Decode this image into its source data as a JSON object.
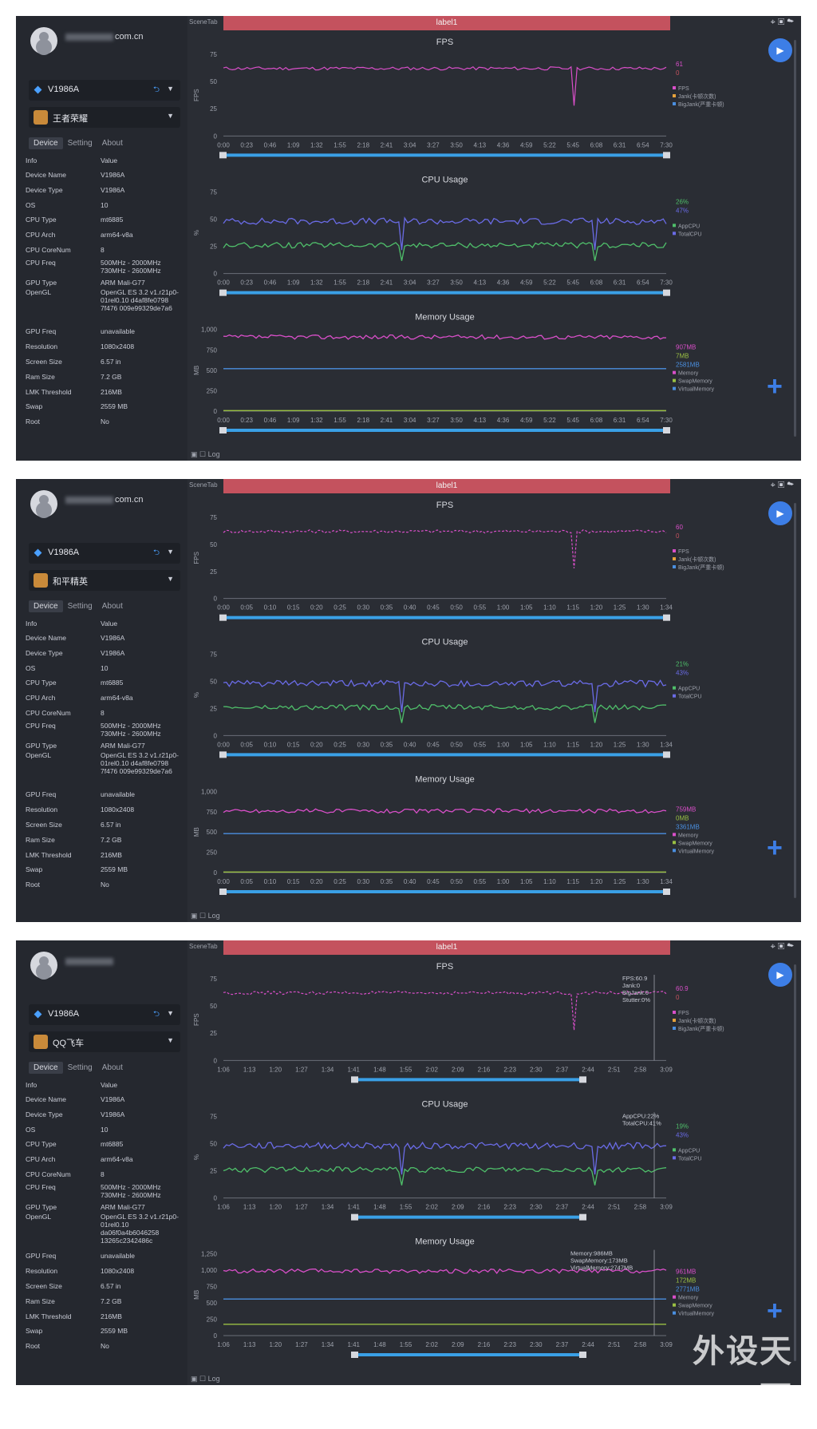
{
  "screenshots": [
    {
      "user": "com.cn",
      "device": "V1986A",
      "app": "王者荣耀",
      "tabs": [
        "Device",
        "Setting",
        "About"
      ],
      "info_header": {
        "k": "Info",
        "v": "Value"
      },
      "info": [
        {
          "k": "Device Name",
          "v": "V1986A"
        },
        {
          "k": "Device Type",
          "v": "V1986A"
        },
        {
          "k": "OS",
          "v": "10"
        },
        {
          "k": "CPU Type",
          "v": "mt6885"
        },
        {
          "k": "CPU Arch",
          "v": "arm64-v8a"
        },
        {
          "k": "CPU CoreNum",
          "v": "8"
        },
        {
          "k": "CPU Freq",
          "v": "500MHz - 2000MHz 730MHz - 2600MHz"
        },
        {
          "k": "GPU Type",
          "v": "ARM Mali-G77"
        },
        {
          "k": "OpenGL",
          "v": "OpenGL ES 3.2 v1.r21p0-01rel0.10 d4af8fe0798 7f476 009e99329de7a6"
        },
        {
          "k": "GPU Freq",
          "v": "unavailable"
        },
        {
          "k": "Resolution",
          "v": "1080x2408"
        },
        {
          "k": "Screen Size",
          "v": "6.57 in"
        },
        {
          "k": "Ram Size",
          "v": "7.2 GB"
        },
        {
          "k": "LMK Threshold",
          "v": "216MB"
        },
        {
          "k": "Swap",
          "v": "2559 MB"
        },
        {
          "k": "Root",
          "v": "No"
        }
      ],
      "scenetab": "SceneTab",
      "label": "label1",
      "bottom": "Log",
      "xticks": [
        "0:00",
        "0:23",
        "0:46",
        "1:09",
        "1:32",
        "1:55",
        "2:18",
        "2:41",
        "3:04",
        "3:27",
        "3:50",
        "4:13",
        "4:36",
        "4:59",
        "5:22",
        "5:45",
        "6:08",
        "6:31",
        "6:54",
        "7:30"
      ],
      "fps": {
        "title": "FPS",
        "ylabel": "FPS",
        "yticks": [
          "75",
          "50",
          "25",
          "0"
        ],
        "values": [
          "61",
          "0"
        ],
        "legend": [
          "FPS",
          "Jank(卡顿次数)",
          "BigJank(严重卡顿)"
        ]
      },
      "cpu": {
        "title": "CPU Usage",
        "ylabel": "%",
        "yticks": [
          "75",
          "50",
          "25",
          "0"
        ],
        "values": [
          "26%",
          "47%"
        ],
        "legend": [
          "AppCPU",
          "TotalCPU"
        ]
      },
      "mem": {
        "title": "Memory Usage",
        "ylabel": "MB",
        "yticks": [
          "1,000",
          "750",
          "500",
          "250",
          "0"
        ],
        "values": [
          "907MB",
          "7MB",
          "2581MB"
        ],
        "legend": [
          "Memory",
          "SwapMemory",
          "VirtualMemory"
        ]
      }
    },
    {
      "user": "com.cn",
      "device": "V1986A",
      "app": "和平精英",
      "tabs": [
        "Device",
        "Setting",
        "About"
      ],
      "info_header": {
        "k": "Info",
        "v": "Value"
      },
      "info": [
        {
          "k": "Device Name",
          "v": "V1986A"
        },
        {
          "k": "Device Type",
          "v": "V1986A"
        },
        {
          "k": "OS",
          "v": "10"
        },
        {
          "k": "CPU Type",
          "v": "mt6885"
        },
        {
          "k": "CPU Arch",
          "v": "arm64-v8a"
        },
        {
          "k": "CPU CoreNum",
          "v": "8"
        },
        {
          "k": "CPU Freq",
          "v": "500MHz - 2000MHz 730MHz - 2600MHz"
        },
        {
          "k": "GPU Type",
          "v": "ARM Mali-G77"
        },
        {
          "k": "OpenGL",
          "v": "OpenGL ES 3.2 v1.r21p0-01rel0.10 d4af8fe0798 7f476 009e99329de7a6"
        },
        {
          "k": "GPU Freq",
          "v": "unavailable"
        },
        {
          "k": "Resolution",
          "v": "1080x2408"
        },
        {
          "k": "Screen Size",
          "v": "6.57 in"
        },
        {
          "k": "Ram Size",
          "v": "7.2 GB"
        },
        {
          "k": "LMK Threshold",
          "v": "216MB"
        },
        {
          "k": "Swap",
          "v": "2559 MB"
        },
        {
          "k": "Root",
          "v": "No"
        }
      ],
      "scenetab": "SceneTab",
      "label": "label1",
      "bottom": "Log",
      "xticks": [
        "0:00",
        "0:05",
        "0:10",
        "0:15",
        "0:20",
        "0:25",
        "0:30",
        "0:35",
        "0:40",
        "0:45",
        "0:50",
        "0:55",
        "1:00",
        "1:05",
        "1:10",
        "1:15",
        "1:20",
        "1:25",
        "1:30",
        "1:34"
      ],
      "fps": {
        "title": "FPS",
        "ylabel": "FPS",
        "yticks": [
          "75",
          "50",
          "25",
          "0"
        ],
        "values": [
          "60",
          "0"
        ],
        "legend": [
          "FPS",
          "Jank(卡顿次数)",
          "BigJank(严重卡顿)"
        ]
      },
      "cpu": {
        "title": "CPU Usage",
        "ylabel": "%",
        "yticks": [
          "75",
          "50",
          "25",
          "0"
        ],
        "values": [
          "21%",
          "43%"
        ],
        "legend": [
          "AppCPU",
          "TotalCPU"
        ]
      },
      "mem": {
        "title": "Memory Usage",
        "ylabel": "MB",
        "yticks": [
          "1,000",
          "750",
          "500",
          "250",
          "0"
        ],
        "values": [
          "759MB",
          "0MB",
          "3361MB"
        ],
        "legend": [
          "Memory",
          "SwapMemory",
          "VirtualMemory"
        ]
      }
    },
    {
      "user": "",
      "device": "V1986A",
      "app": "QQ飞车",
      "tabs": [
        "Device",
        "Setting",
        "About"
      ],
      "info_header": {
        "k": "Info",
        "v": "Value"
      },
      "info": [
        {
          "k": "Device Name",
          "v": "V1986A"
        },
        {
          "k": "Device Type",
          "v": "V1986A"
        },
        {
          "k": "OS",
          "v": "10"
        },
        {
          "k": "CPU Type",
          "v": "mt6885"
        },
        {
          "k": "CPU Arch",
          "v": "arm64-v8a"
        },
        {
          "k": "CPU CoreNum",
          "v": "8"
        },
        {
          "k": "CPU Freq",
          "v": "500MHz - 2000MHz 730MHz - 2600MHz"
        },
        {
          "k": "GPU Type",
          "v": "ARM Mali-G77"
        },
        {
          "k": "OpenGL",
          "v": "OpenGL ES 3.2 v1.r21p0-01rel0.10 da06f0a4b6046258 13265c2342486c"
        },
        {
          "k": "GPU Freq",
          "v": "unavailable"
        },
        {
          "k": "Resolution",
          "v": "1080x2408"
        },
        {
          "k": "Screen Size",
          "v": "6.57 in"
        },
        {
          "k": "Ram Size",
          "v": "7.2 GB"
        },
        {
          "k": "LMK Threshold",
          "v": "216MB"
        },
        {
          "k": "Swap",
          "v": "2559 MB"
        },
        {
          "k": "Root",
          "v": "No"
        }
      ],
      "scenetab": "SceneTab",
      "label": "label1",
      "bottom": "Log",
      "xticks": [
        "1:06",
        "1:13",
        "1:20",
        "1:27",
        "1:34",
        "1:41",
        "1:48",
        "1:55",
        "2:02",
        "2:09",
        "2:16",
        "2:23",
        "2:30",
        "2:37",
        "2:44",
        "2:51",
        "2:58",
        "3:09"
      ],
      "fps": {
        "title": "FPS",
        "ylabel": "FPS",
        "yticks": [
          "75",
          "50",
          "25",
          "0"
        ],
        "values": [
          "60.9",
          "0"
        ],
        "legend": [
          "FPS",
          "Jank(卡顿次数)",
          "BigJank(严重卡顿)"
        ],
        "tooltip": [
          "FPS:60.9",
          "Jank:0",
          "BigJank:0",
          "Stutter:0%"
        ]
      },
      "cpu": {
        "title": "CPU Usage",
        "ylabel": "%",
        "yticks": [
          "75",
          "50",
          "25",
          "0"
        ],
        "values": [
          "19%",
          "43%"
        ],
        "legend": [
          "AppCPU",
          "TotalCPU"
        ],
        "tooltip": [
          "AppCPU:22%",
          "TotalCPU:41%"
        ]
      },
      "mem": {
        "title": "Memory Usage",
        "ylabel": "MB",
        "yticks": [
          "1,250",
          "1,000",
          "750",
          "500",
          "250",
          "0"
        ],
        "values": [
          "961MB",
          "172MB",
          "2771MB"
        ],
        "legend": [
          "Memory",
          "SwapMemory",
          "VirtualMemory"
        ],
        "tooltip": [
          "Memory:986MB",
          "SwapMemory:173MB",
          "VirtualMemory:2747MB"
        ]
      }
    }
  ],
  "colors": {
    "fps": "#d94fc9",
    "app": "#4fbf6a",
    "total": "#6a6be6",
    "mem": "#d94fc9",
    "swap": "#9ac043",
    "virt": "#4a8fe0",
    "accent": "#3d7ee6",
    "label": "#c4525e"
  },
  "watermark": {
    "title": "外设天下",
    "site": "WWW.WSTX.COM"
  }
}
